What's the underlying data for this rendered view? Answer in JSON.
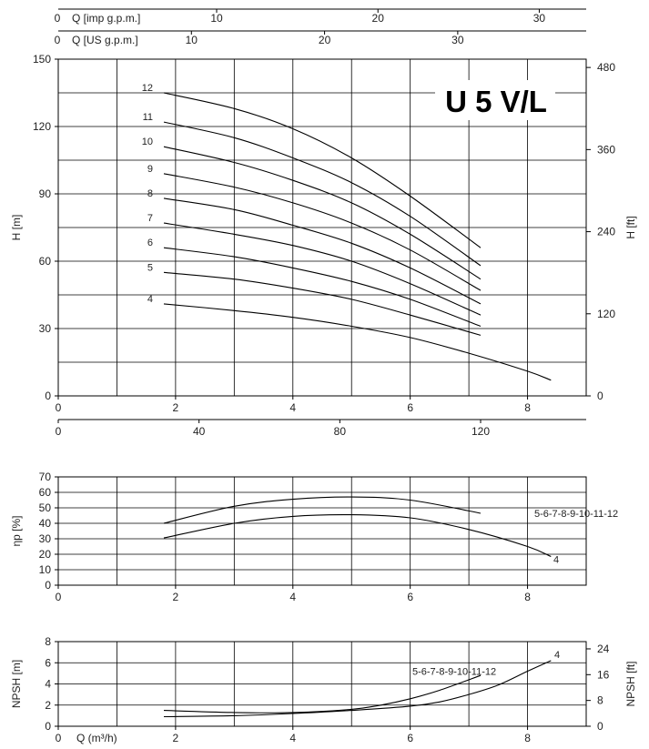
{
  "chart_data": [
    {
      "type": "line",
      "title": "U 5 V/L",
      "xlabel": "",
      "ylabel": "H [m]",
      "y2label": "H [ft]",
      "xlim": [
        0,
        9
      ],
      "ylim": [
        0,
        150
      ],
      "xticks": [
        0,
        2,
        4,
        6,
        8
      ],
      "yticks": [
        0,
        30,
        60,
        90,
        120,
        150
      ],
      "y2ticks": [
        0,
        120,
        240,
        360,
        480
      ],
      "top_axes": [
        {
          "label": "Q [imp g.p.m.]",
          "zero": "0",
          "ticks": [
            {
              "v": 10,
              "q": 2.7
            },
            {
              "v": 20,
              "q": 5.45
            },
            {
              "v": 30,
              "q": 8.2
            }
          ]
        },
        {
          "label": "Q [US g.p.m.]",
          "zero": "0",
          "ticks": [
            {
              "v": 10,
              "q": 2.27
            },
            {
              "v": 20,
              "q": 4.54
            },
            {
              "v": 30,
              "q": 6.81
            }
          ]
        }
      ],
      "bottom_axis2": {
        "ticks": [
          {
            "v": 0,
            "q": 0
          },
          {
            "v": 40,
            "q": 2.4
          },
          {
            "v": 80,
            "q": 4.8
          },
          {
            "v": 120,
            "q": 7.2
          }
        ]
      },
      "grid": true,
      "series": [
        {
          "name": "12",
          "x": [
            1.8,
            3.0,
            4.0,
            5.0,
            6.0,
            7.2
          ],
          "y": [
            135,
            128,
            119,
            106,
            89,
            66
          ]
        },
        {
          "name": "11",
          "x": [
            1.8,
            3.0,
            4.0,
            5.0,
            6.0,
            7.2
          ],
          "y": [
            122,
            115,
            106,
            95,
            80,
            58
          ]
        },
        {
          "name": "10",
          "x": [
            1.8,
            3.0,
            4.0,
            5.0,
            6.0,
            7.2
          ],
          "y": [
            111,
            104,
            96,
            86,
            72,
            52
          ]
        },
        {
          "name": "9",
          "x": [
            1.8,
            3.0,
            4.0,
            5.0,
            6.0,
            7.2
          ],
          "y": [
            99,
            93,
            86,
            77,
            65,
            47
          ]
        },
        {
          "name": "8",
          "x": [
            1.8,
            3.0,
            4.0,
            5.0,
            6.0,
            7.2
          ],
          "y": [
            88,
            83,
            76,
            68,
            57,
            41
          ]
        },
        {
          "name": "7",
          "x": [
            1.8,
            3.0,
            4.0,
            5.0,
            6.0,
            7.2
          ],
          "y": [
            77,
            72,
            67,
            60,
            50,
            36
          ]
        },
        {
          "name": "6",
          "x": [
            1.8,
            3.0,
            4.0,
            5.0,
            6.0,
            7.2
          ],
          "y": [
            66,
            62,
            57,
            51,
            43,
            31
          ]
        },
        {
          "name": "5",
          "x": [
            1.8,
            3.0,
            4.0,
            5.0,
            6.0,
            7.2
          ],
          "y": [
            55,
            52,
            48,
            43,
            36,
            27
          ]
        },
        {
          "name": "4",
          "x": [
            1.8,
            3.0,
            4.0,
            5.0,
            6.0,
            7.0,
            8.0,
            8.4
          ],
          "y": [
            41,
            38,
            35,
            31,
            26,
            19,
            11,
            7
          ]
        }
      ]
    },
    {
      "type": "line",
      "ylabel": "ηp [%]",
      "xlim": [
        0,
        9
      ],
      "ylim": [
        0,
        70
      ],
      "xticks": [
        0,
        2,
        4,
        6,
        8
      ],
      "yticks": [
        0,
        10,
        20,
        30,
        40,
        50,
        60,
        70
      ],
      "grid": true,
      "series": [
        {
          "name": "5-6-7-8-9-10-11-12",
          "x": [
            1.8,
            3.0,
            4.0,
            5.0,
            6.0,
            7.2
          ],
          "y": [
            40,
            51,
            55.5,
            57,
            55,
            46.5
          ]
        },
        {
          "name": "4",
          "x": [
            1.8,
            3.0,
            4.0,
            5.0,
            6.0,
            7.0,
            8.0,
            8.4
          ],
          "y": [
            30.5,
            40,
            44.5,
            45.5,
            43.5,
            36,
            25,
            18.5
          ]
        }
      ]
    },
    {
      "type": "line",
      "xlabel": "Q (m³/h)",
      "ylabel": "NPSH [m]",
      "y2label": "NPSH [ft]",
      "xlim": [
        0,
        9
      ],
      "ylim": [
        0,
        8
      ],
      "xticks": [
        0,
        2,
        4,
        6,
        8
      ],
      "yticks": [
        0,
        2,
        4,
        6,
        8
      ],
      "y2ticks": [
        0,
        8,
        16,
        24
      ],
      "grid": true,
      "series": [
        {
          "name": "5-6-7-8-9-10-11-12",
          "x": [
            1.8,
            3.0,
            4.0,
            5.0,
            5.5,
            6.0,
            6.5,
            7.2
          ],
          "y": [
            1.5,
            1.3,
            1.3,
            1.6,
            2.0,
            2.6,
            3.4,
            4.8
          ]
        },
        {
          "name": "4",
          "x": [
            1.8,
            3.0,
            4.0,
            5.0,
            6.0,
            6.5,
            7.0,
            7.5,
            8.0,
            8.4
          ],
          "y": [
            0.9,
            1.0,
            1.2,
            1.5,
            1.9,
            2.3,
            3.0,
            3.9,
            5.2,
            6.2
          ]
        }
      ]
    }
  ]
}
